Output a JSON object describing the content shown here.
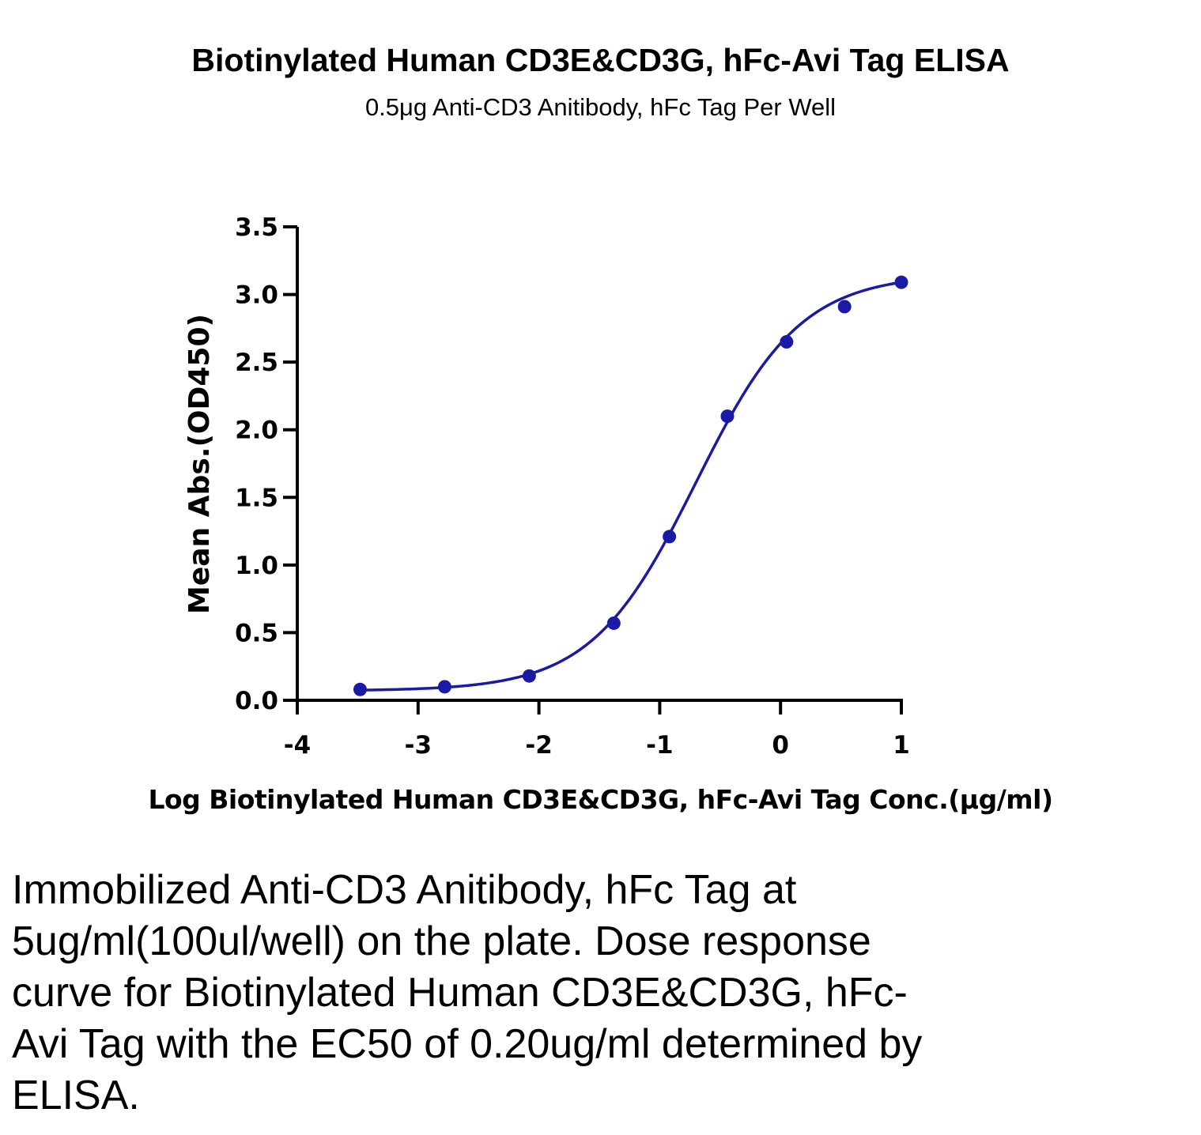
{
  "title": "Biotinylated Human CD3E&CD3G, hFc-Avi Tag ELISA",
  "subtitle": "0.5μg Anti-CD3 Anitibody, hFc Tag Per Well",
  "caption": "Immobilized Anti-CD3 Anitibody, hFc Tag at 5ug/ml(100ul/well) on the plate. Dose response curve for Biotinylated Human CD3E&CD3G, hFc-Avi Tag with the EC50 of 0.20ug/ml determined by ELISA.",
  "colors": {
    "series": "#1a1aa6",
    "axis": "#000000"
  },
  "chart_data": {
    "type": "scatter",
    "title": "Biotinylated Human CD3E&CD3G, hFc-Avi Tag ELISA",
    "subtitle": "0.5μg Anti-CD3 Anitibody, hFc Tag Per Well",
    "xlabel": "Log Biotinylated Human CD3E&CD3G, hFc-Avi Tag Conc.(μg/ml)",
    "ylabel": "Mean Abs.(OD450)",
    "xlim": [
      -4,
      1
    ],
    "ylim": [
      0,
      3.5
    ],
    "x_ticks": [
      "-4",
      "-3",
      "-2",
      "-1",
      "0",
      "1"
    ],
    "y_ticks": [
      "0.0",
      "0.5",
      "1.0",
      "1.5",
      "2.0",
      "2.5",
      "3.0",
      "3.5"
    ],
    "grid": false,
    "points": {
      "x": [
        -3.48,
        -2.78,
        -2.08,
        -1.38,
        -0.92,
        -0.44,
        0.05,
        0.53,
        1.0
      ],
      "y": [
        0.08,
        0.1,
        0.18,
        0.57,
        1.21,
        2.1,
        2.65,
        2.91,
        3.09
      ]
    },
    "fit_curve": {
      "model": "4PL",
      "bottom": 0.07,
      "top": 3.15,
      "log_ec50": -0.7,
      "hill_slope": 1.0,
      "x_range": [
        -3.48,
        1.0
      ]
    }
  }
}
